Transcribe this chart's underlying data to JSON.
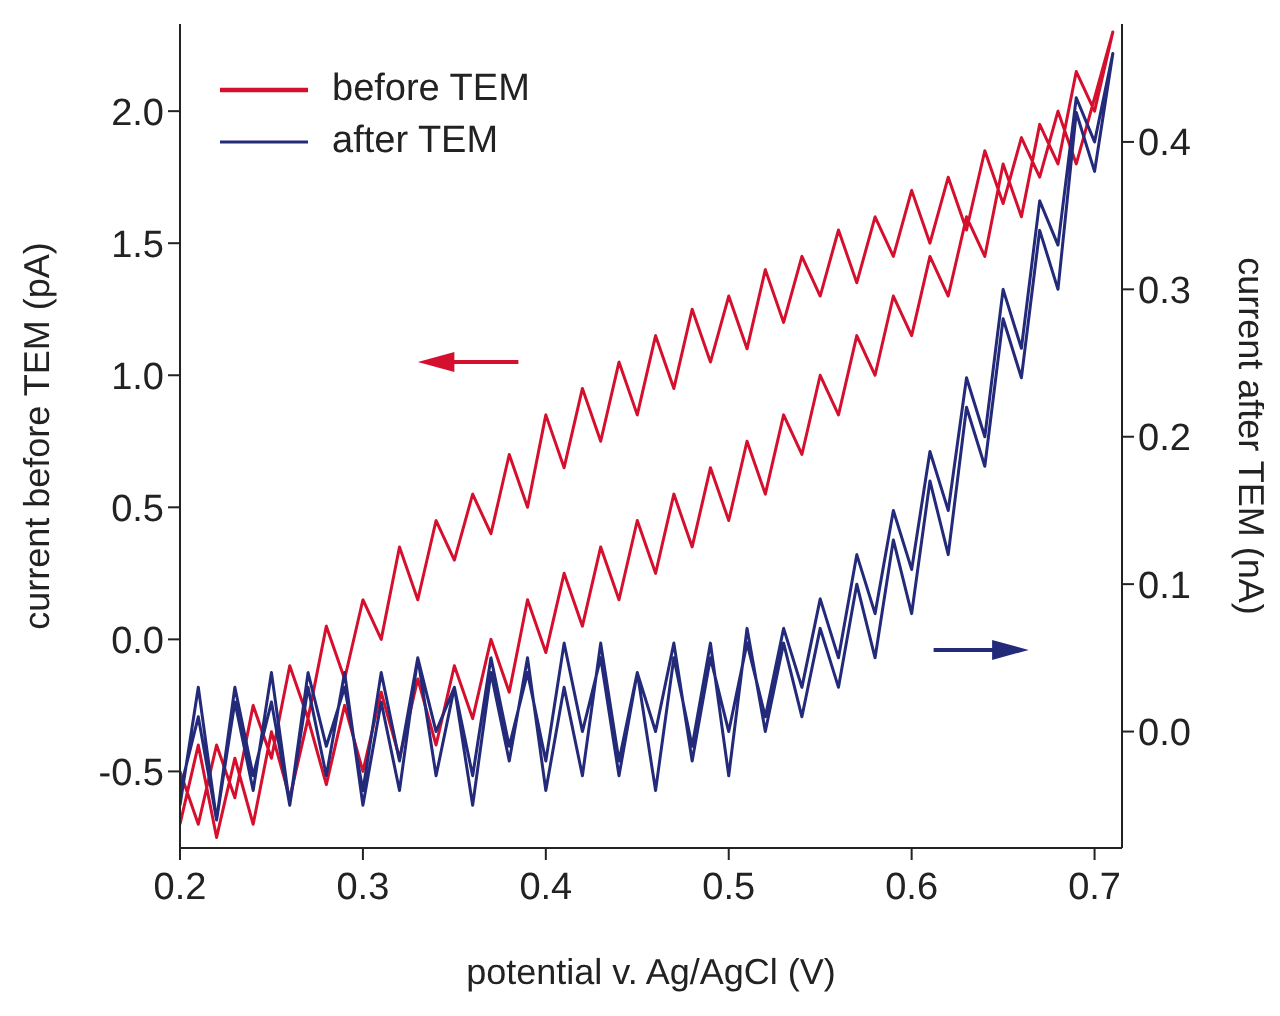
{
  "chart_data": {
    "type": "line",
    "xlabel": "potential v. Ag/AgCl (V)",
    "ylabel": "current before TEM (pA)",
    "y2label": "current after TEM (nA)",
    "xlim": [
      0.2,
      0.715
    ],
    "xticks": [
      0.2,
      0.3,
      0.4,
      0.5,
      0.6,
      0.7
    ],
    "ylim": [
      -0.79,
      2.33
    ],
    "yticks": [
      -0.5,
      {
        "value": 0,
        "label": "0.0"
      },
      0.5,
      {
        "value": 1,
        "label": "1.0"
      },
      1.5,
      {
        "value": 2,
        "label": "2.0"
      }
    ],
    "y2lim": [
      -0.079,
      0.48
    ],
    "y2ticks": [
      {
        "value": 0,
        "label": "0.0"
      },
      0.1,
      0.2,
      0.3,
      0.4
    ],
    "legend": "top left",
    "grid": false,
    "marker": "none",
    "line_style": "solid",
    "series": [
      {
        "name": "before TEM",
        "color": "#d4102e",
        "x": [
          0.2,
          0.21,
          0.22,
          0.23,
          0.24,
          0.25,
          0.26,
          0.27,
          0.28,
          0.29,
          0.3,
          0.31,
          0.32,
          0.33,
          0.34,
          0.35,
          0.36,
          0.37,
          0.38,
          0.39,
          0.4,
          0.41,
          0.42,
          0.43,
          0.44,
          0.45,
          0.46,
          0.47,
          0.48,
          0.49,
          0.5,
          0.51,
          0.52,
          0.53,
          0.54,
          0.55,
          0.56,
          0.57,
          0.58,
          0.59,
          0.6,
          0.61,
          0.62,
          0.63,
          0.64,
          0.65,
          0.66,
          0.67,
          0.68,
          0.69,
          0.7,
          0.71,
          0.7,
          0.69,
          0.68,
          0.67,
          0.66,
          0.65,
          0.64,
          0.63,
          0.62,
          0.61,
          0.6,
          0.59,
          0.58,
          0.57,
          0.56,
          0.55,
          0.54,
          0.53,
          0.52,
          0.51,
          0.5,
          0.49,
          0.48,
          0.47,
          0.46,
          0.45,
          0.44,
          0.43,
          0.42,
          0.41,
          0.4,
          0.39,
          0.38,
          0.37,
          0.36,
          0.35,
          0.34,
          0.33,
          0.32,
          0.31,
          0.3,
          0.29,
          0.28,
          0.27,
          0.26,
          0.25,
          0.24,
          0.23,
          0.22,
          0.21,
          0.2
        ],
        "values": [
          -0.7,
          -0.4,
          -0.75,
          -0.45,
          -0.7,
          -0.35,
          -0.6,
          -0.3,
          -0.55,
          -0.25,
          -0.5,
          -0.2,
          -0.45,
          -0.15,
          -0.4,
          -0.1,
          -0.3,
          0.0,
          -0.2,
          0.15,
          -0.05,
          0.25,
          0.05,
          0.35,
          0.15,
          0.45,
          0.25,
          0.55,
          0.35,
          0.65,
          0.45,
          0.75,
          0.55,
          0.85,
          0.7,
          1.0,
          0.85,
          1.15,
          1.0,
          1.3,
          1.15,
          1.45,
          1.3,
          1.6,
          1.45,
          1.8,
          1.6,
          1.95,
          1.8,
          2.15,
          2.0,
          2.3,
          2.05,
          1.8,
          2.0,
          1.75,
          1.9,
          1.65,
          1.85,
          1.55,
          1.75,
          1.5,
          1.7,
          1.45,
          1.6,
          1.35,
          1.55,
          1.3,
          1.45,
          1.2,
          1.4,
          1.1,
          1.3,
          1.05,
          1.25,
          0.95,
          1.15,
          0.85,
          1.05,
          0.75,
          0.95,
          0.65,
          0.85,
          0.5,
          0.7,
          0.4,
          0.55,
          0.3,
          0.45,
          0.15,
          0.35,
          0.0,
          0.15,
          -0.15,
          0.05,
          -0.3,
          -0.1,
          -0.45,
          -0.25,
          -0.6,
          -0.4,
          -0.7,
          -0.5
        ]
      },
      {
        "name": "after TEM",
        "color": "#232a7a",
        "axis": "y2",
        "x": [
          0.2,
          0.21,
          0.22,
          0.23,
          0.24,
          0.25,
          0.26,
          0.27,
          0.28,
          0.29,
          0.3,
          0.31,
          0.32,
          0.33,
          0.34,
          0.35,
          0.36,
          0.37,
          0.38,
          0.39,
          0.4,
          0.41,
          0.42,
          0.43,
          0.44,
          0.45,
          0.46,
          0.47,
          0.48,
          0.49,
          0.5,
          0.51,
          0.52,
          0.53,
          0.54,
          0.55,
          0.56,
          0.57,
          0.58,
          0.59,
          0.6,
          0.61,
          0.62,
          0.63,
          0.64,
          0.65,
          0.66,
          0.67,
          0.68,
          0.69,
          0.7,
          0.71,
          0.7,
          0.69,
          0.68,
          0.67,
          0.66,
          0.65,
          0.64,
          0.63,
          0.62,
          0.61,
          0.6,
          0.59,
          0.58,
          0.57,
          0.56,
          0.55,
          0.54,
          0.53,
          0.52,
          0.51,
          0.5,
          0.49,
          0.48,
          0.47,
          0.46,
          0.45,
          0.44,
          0.43,
          0.42,
          0.41,
          0.4,
          0.39,
          0.38,
          0.37,
          0.36,
          0.35,
          0.34,
          0.33,
          0.32,
          0.31,
          0.3,
          0.29,
          0.28,
          0.27,
          0.26,
          0.25,
          0.24,
          0.23,
          0.22,
          0.21,
          0.2
        ],
        "values": [
          -0.05,
          0.03,
          -0.06,
          0.02,
          -0.04,
          0.04,
          -0.05,
          0.03,
          -0.03,
          0.04,
          -0.05,
          0.02,
          -0.04,
          0.05,
          -0.03,
          0.03,
          -0.05,
          0.04,
          -0.02,
          0.05,
          -0.04,
          0.03,
          -0.03,
          0.06,
          -0.02,
          0.04,
          -0.04,
          0.05,
          -0.01,
          0.06,
          -0.03,
          0.07,
          0.0,
          0.06,
          0.01,
          0.07,
          0.03,
          0.1,
          0.05,
          0.13,
          0.08,
          0.17,
          0.12,
          0.22,
          0.18,
          0.28,
          0.24,
          0.34,
          0.3,
          0.42,
          0.38,
          0.46,
          0.4,
          0.43,
          0.33,
          0.36,
          0.26,
          0.3,
          0.2,
          0.24,
          0.15,
          0.19,
          0.11,
          0.15,
          0.08,
          0.12,
          0.05,
          0.09,
          0.03,
          0.07,
          0.01,
          0.06,
          0.0,
          0.05,
          -0.02,
          0.06,
          0.0,
          0.04,
          -0.03,
          0.05,
          0.0,
          0.06,
          -0.02,
          0.04,
          -0.01,
          0.05,
          -0.03,
          0.03,
          0.0,
          0.05,
          -0.02,
          0.04,
          -0.04,
          0.03,
          -0.01,
          0.04,
          -0.05,
          0.02,
          -0.03,
          0.03,
          -0.06,
          0.01,
          -0.04
        ]
      }
    ]
  }
}
